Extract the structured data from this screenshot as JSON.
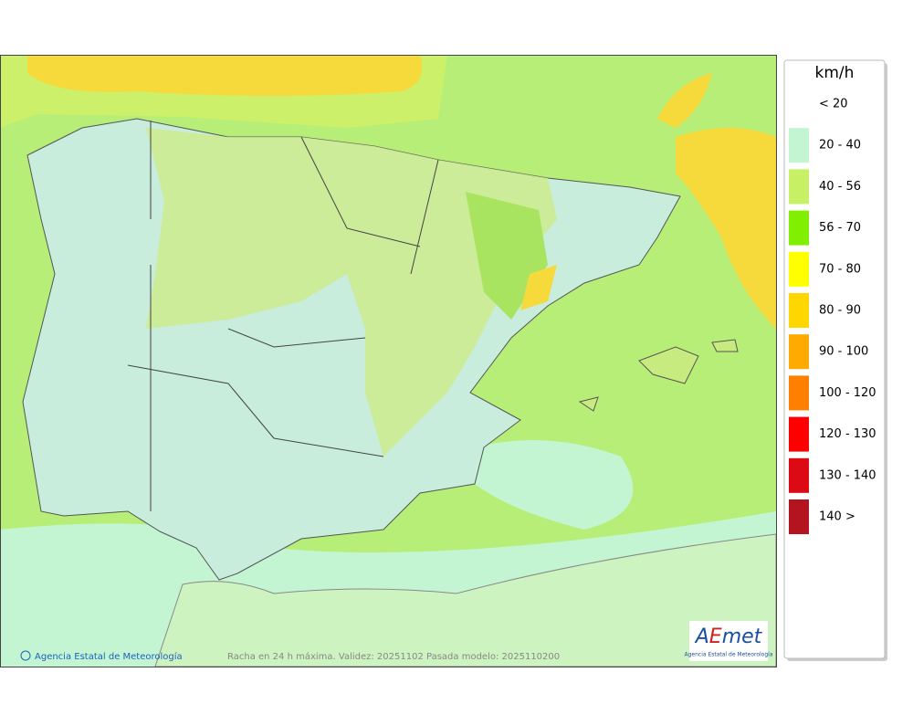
{
  "map": {
    "credit": "Agencia Estatal de Meteorología",
    "caption": "Racha en 24 h máxima. Validez: 20251102 Pasada modelo: 2025110200"
  },
  "logo": {
    "parts": [
      "A",
      "E",
      "met"
    ],
    "subtitle": "Agencia Estatal de Meteorología"
  },
  "legend": {
    "unit": "km/h",
    "items": [
      {
        "label": "< 20"
      },
      {
        "label": "20 - 40",
        "color": "#c4f5d2"
      },
      {
        "label": "40 - 56",
        "color": "#c8f064"
      },
      {
        "label": "56 - 70",
        "color": "#80f000"
      },
      {
        "label": "70 - 80",
        "color": "#ffff00"
      },
      {
        "label": "80 - 90",
        "color": "#ffd700"
      },
      {
        "label": "90 - 100",
        "color": "#ffaa00"
      },
      {
        "label": "100 - 120",
        "color": "#ff8000"
      },
      {
        "label": "120 - 130",
        "color": "#ff0000"
      },
      {
        "label": "130 - 140",
        "color": "#dc0a14"
      },
      {
        "label": "140 >",
        "color": "#b41420"
      }
    ]
  }
}
